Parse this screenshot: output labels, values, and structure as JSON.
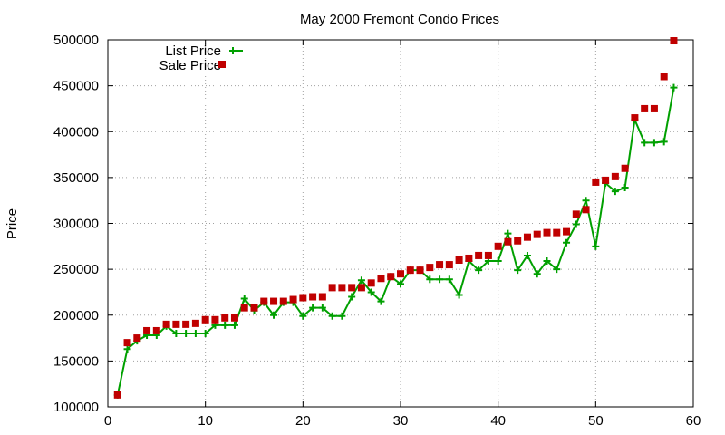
{
  "chart_data": {
    "type": "line",
    "title": "May 2000 Fremont Condo Prices",
    "xlabel": "",
    "ylabel": "Price",
    "xlim": [
      0,
      60
    ],
    "ylim": [
      100000,
      500000
    ],
    "x_ticks": [
      0,
      10,
      20,
      30,
      40,
      50,
      60
    ],
    "y_ticks": [
      100000,
      150000,
      200000,
      250000,
      300000,
      350000,
      400000,
      450000,
      500000
    ],
    "grid": true,
    "legend_position": "top-left",
    "series": [
      {
        "name": "List Price",
        "style": "line+crosses",
        "color": "#00a000",
        "x": [
          1,
          2,
          3,
          4,
          5,
          6,
          7,
          8,
          9,
          10,
          11,
          12,
          13,
          14,
          15,
          16,
          17,
          18,
          19,
          20,
          21,
          22,
          23,
          24,
          25,
          26,
          27,
          28,
          29,
          30,
          31,
          32,
          33,
          34,
          35,
          36,
          37,
          38,
          39,
          40,
          41,
          42,
          43,
          44,
          45,
          46,
          47,
          48,
          49,
          50,
          51,
          52,
          53,
          54,
          55,
          56,
          57,
          58
        ],
        "y": [
          113000,
          163000,
          172000,
          178000,
          178000,
          188000,
          180000,
          180000,
          180000,
          180000,
          189000,
          189000,
          189000,
          218000,
          205000,
          214000,
          200000,
          214000,
          214000,
          199000,
          208000,
          208000,
          199000,
          199000,
          220000,
          238000,
          225000,
          215000,
          242000,
          234000,
          249000,
          249000,
          239000,
          239000,
          239000,
          222000,
          259000,
          249000,
          259000,
          259000,
          289000,
          249000,
          265000,
          245000,
          259000,
          250000,
          279000,
          299000,
          325000,
          275000,
          344000,
          335000,
          339000,
          413000,
          388000,
          388000,
          389000,
          448000
        ]
      },
      {
        "name": "Sale Price",
        "style": "squares",
        "color": "#c00000",
        "x": [
          1,
          2,
          3,
          4,
          5,
          6,
          7,
          8,
          9,
          10,
          11,
          12,
          13,
          14,
          15,
          16,
          17,
          18,
          19,
          20,
          21,
          22,
          23,
          24,
          25,
          26,
          27,
          28,
          29,
          30,
          31,
          32,
          33,
          34,
          35,
          36,
          37,
          38,
          39,
          40,
          41,
          42,
          43,
          44,
          45,
          46,
          47,
          48,
          49,
          50,
          51,
          52,
          53,
          54,
          55,
          56,
          57,
          58
        ],
        "y": [
          113000,
          170000,
          175000,
          183000,
          183000,
          190000,
          190000,
          190000,
          191000,
          195000,
          195000,
          197000,
          197000,
          208000,
          208000,
          215000,
          215000,
          215000,
          217000,
          219000,
          220000,
          220000,
          230000,
          230000,
          230000,
          230000,
          235000,
          240000,
          242000,
          245000,
          249000,
          249000,
          252000,
          255000,
          255000,
          260000,
          262000,
          265000,
          265000,
          275000,
          280000,
          281000,
          285000,
          288000,
          290000,
          290000,
          291000,
          310000,
          315000,
          345000,
          347000,
          351000,
          360000,
          415000,
          425000,
          425000,
          460000,
          499000
        ]
      }
    ]
  }
}
